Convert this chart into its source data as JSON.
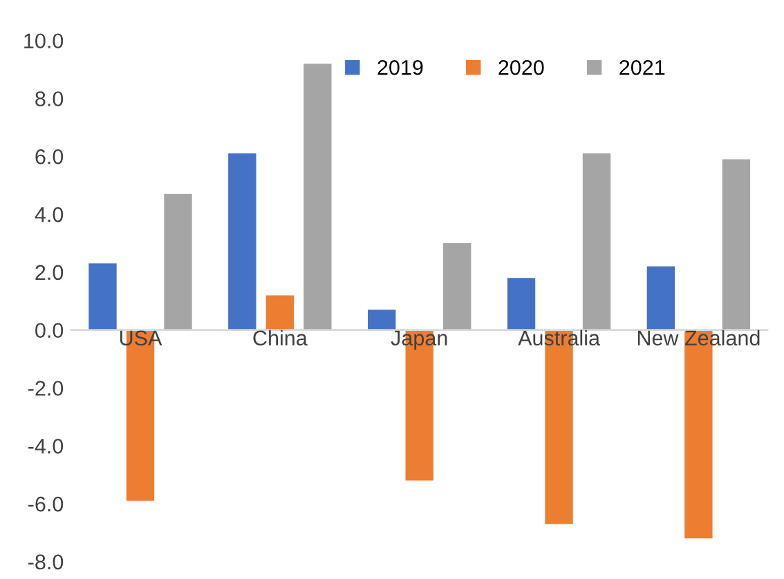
{
  "chart_data": {
    "type": "bar",
    "categories": [
      "USA",
      "China",
      "Japan",
      "Australia",
      "New Zealand"
    ],
    "series": [
      {
        "name": "2019",
        "color": "#4472c4",
        "values": [
          2.3,
          6.1,
          0.7,
          1.8,
          2.2
        ]
      },
      {
        "name": "2020",
        "color": "#ed7d31",
        "values": [
          -5.9,
          1.2,
          -5.2,
          -6.7,
          -7.2
        ]
      },
      {
        "name": "2021",
        "color": "#a5a5a5",
        "values": [
          4.7,
          9.2,
          3.0,
          6.1,
          5.9
        ]
      }
    ],
    "ylim": [
      -8.0,
      10.0
    ],
    "yticks": [
      {
        "value": -8,
        "label": "-8.0"
      },
      {
        "value": -6,
        "label": "-6.0"
      },
      {
        "value": -4,
        "label": "-4.0"
      },
      {
        "value": -2,
        "label": "-2.0"
      },
      {
        "value": 0,
        "label": "0.0"
      },
      {
        "value": 2,
        "label": "2.0"
      },
      {
        "value": 4,
        "label": "4.0"
      },
      {
        "value": 6,
        "label": "6.0"
      },
      {
        "value": 8,
        "label": "8.0"
      },
      {
        "value": 10,
        "label": "10.0"
      }
    ],
    "grid": false,
    "legend": "top right"
  }
}
